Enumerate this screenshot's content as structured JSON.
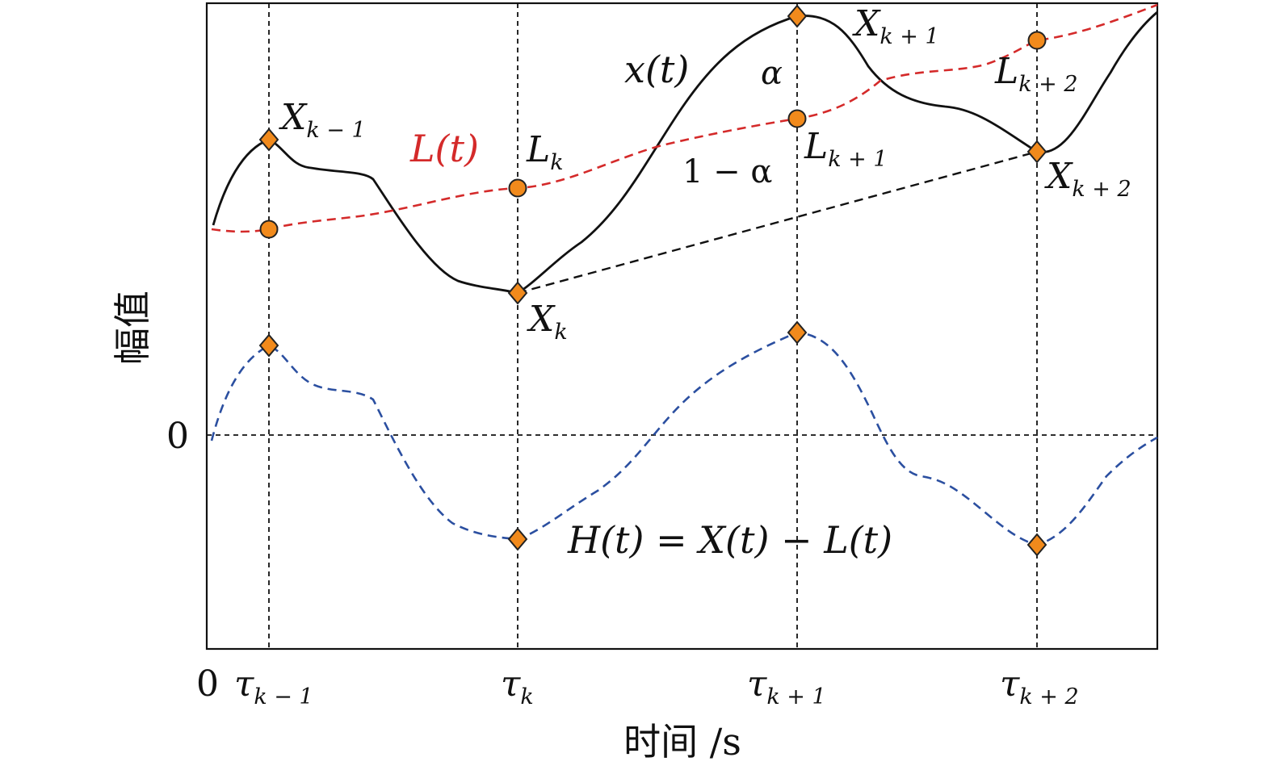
{
  "axes": {
    "x_label": "时间 /s",
    "y_label": "幅值",
    "origin_label": "0",
    "zero_label": "0"
  },
  "ticks": [
    {
      "id": "tau-k-minus-1",
      "base": "τ",
      "sub": "k − 1"
    },
    {
      "id": "tau-k",
      "base": "τ",
      "sub": "k"
    },
    {
      "id": "tau-k-plus-1",
      "base": "τ",
      "sub": "k + 1"
    },
    {
      "id": "tau-k-plus-2",
      "base": "τ",
      "sub": "k + 2"
    }
  ],
  "labels": {
    "x_curve": "x(t)",
    "l_curve": "L(t)",
    "h_curve": "H(t) = X(t) − L(t)",
    "alpha": "α",
    "one_minus_alpha": "1 − α"
  },
  "points": [
    {
      "id": "X-k-minus-1",
      "base": "X",
      "sub": "k − 1"
    },
    {
      "id": "X-k",
      "base": "X",
      "sub": "k"
    },
    {
      "id": "X-k-plus-1",
      "base": "X",
      "sub": "k + 1"
    },
    {
      "id": "X-k-plus-2",
      "base": "X",
      "sub": "k + 2"
    },
    {
      "id": "L-k",
      "base": "L",
      "sub": "k"
    },
    {
      "id": "L-k-plus-1",
      "base": "L",
      "sub": "k + 1"
    },
    {
      "id": "L-k-plus-2",
      "base": "L",
      "sub": "k + 2"
    }
  ],
  "colors": {
    "x_curve": "#111111",
    "l_curve": "#d42a2a",
    "h_curve": "#2b4fa0",
    "marker_fill": "#f18a1c",
    "marker_stroke": "#222222",
    "axes": "#111111"
  }
}
